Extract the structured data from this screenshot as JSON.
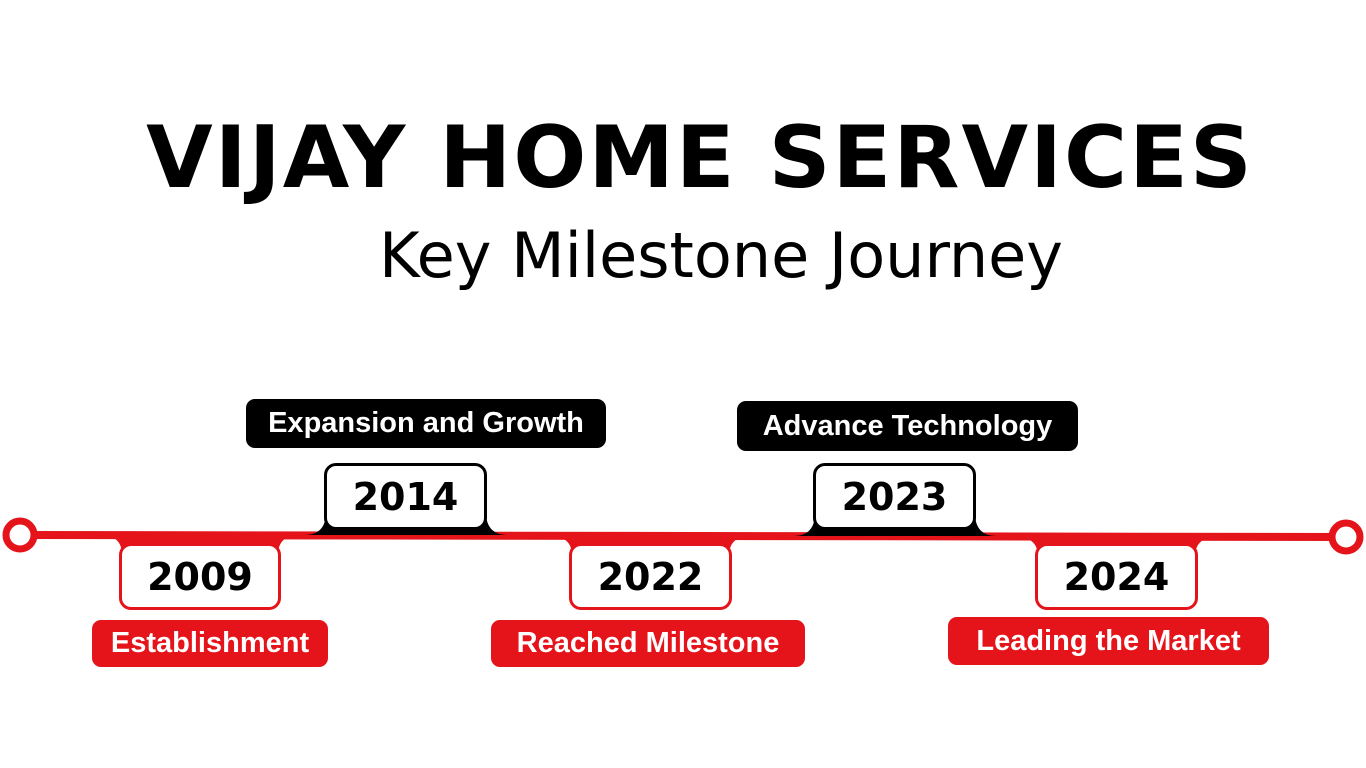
{
  "header": {
    "title": "VIJAY HOME SERVICES",
    "subtitle": "Key Milestone Journey"
  },
  "colors": {
    "line": "#e5131a",
    "dark": "#000000",
    "accent": "#e5131a",
    "background": "#ffffff"
  },
  "milestones": [
    {
      "year": "2009",
      "label": "Establishment"
    },
    {
      "year": "2014",
      "label": "Expansion and Growth"
    },
    {
      "year": "2022",
      "label": "Reached Milestone"
    },
    {
      "year": "2023",
      "label": "Advance Technology"
    },
    {
      "year": "2024",
      "label": "Leading the Market"
    }
  ]
}
